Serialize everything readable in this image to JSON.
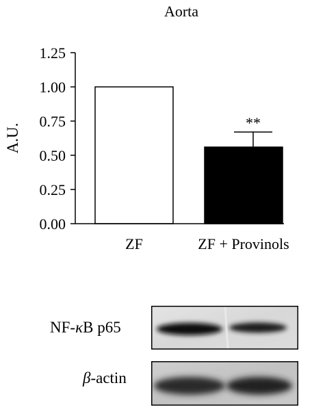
{
  "chart_data": {
    "type": "bar",
    "title": "Aorta",
    "ylabel": "A.U.",
    "xlabel": "",
    "ylim": [
      0,
      1.25
    ],
    "yticks": [
      "0.00",
      "0.25",
      "0.50",
      "0.75",
      "1.00",
      "1.25"
    ],
    "categories": [
      "ZF",
      "ZF + Provinols"
    ],
    "values": [
      1.0,
      0.56
    ],
    "errors": [
      0,
      0.11
    ],
    "bar_colors": [
      "#ffffff",
      "#000000"
    ],
    "significance": [
      "",
      "**"
    ],
    "grid": false
  },
  "blot": {
    "rows": [
      {
        "label_main": "NF-",
        "label_greek": "κ",
        "label_rest": "B p65",
        "band_intensity": [
          0.9,
          0.75
        ]
      },
      {
        "label_main": "",
        "label_greek": "β",
        "label_rest": "-actin",
        "band_intensity": [
          0.75,
          0.8
        ]
      }
    ]
  }
}
